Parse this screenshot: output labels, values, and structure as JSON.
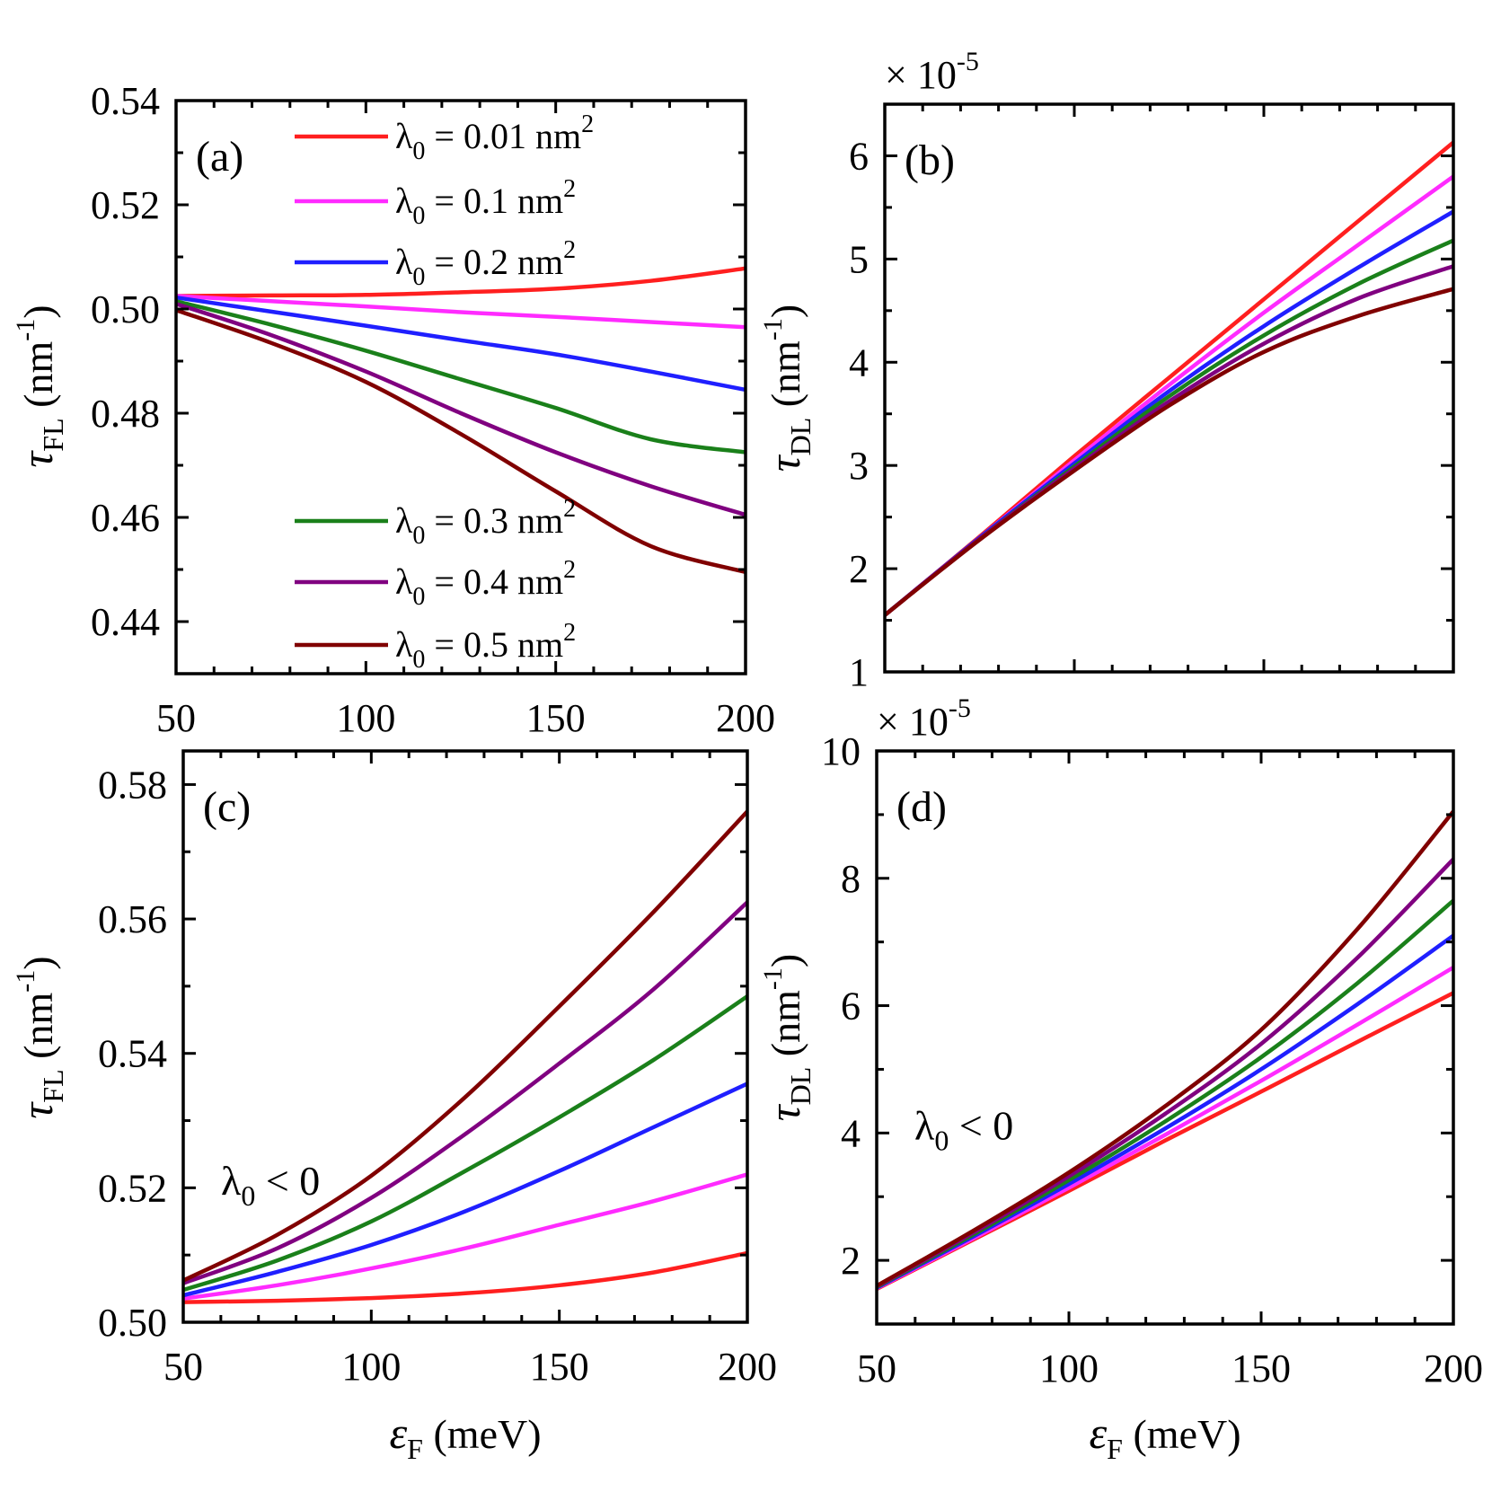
{
  "colors": {
    "0.01": "#ff1f1f",
    "0.1": "#ff2bff",
    "0.2": "#1f1fff",
    "0.3": "#1a801a",
    "0.4": "#800080",
    "0.5": "#800000"
  },
  "axis_labels": {
    "x_sym": "ε",
    "x_sub": "F",
    "x_unit": " (meV)",
    "y_fl_sym": "τ",
    "y_fl_sub": "FL",
    "y_dl_sym": "τ",
    "y_dl_sub": "DL",
    "y_unit_open": " (nm",
    "y_unit_sup": "-1",
    "y_unit_close": ")"
  },
  "chart_data": [
    {
      "panel": "(a)",
      "type": "line",
      "xlim": [
        50,
        200
      ],
      "ylim": [
        0.43,
        0.54
      ],
      "xticks": [
        "50",
        "100",
        "150",
        "200"
      ],
      "yticks": [
        "0.44",
        "0.46",
        "0.48",
        "0.50",
        "0.52",
        "0.54"
      ],
      "x": [
        50,
        75,
        100,
        125,
        150,
        175,
        200
      ],
      "series": [
        {
          "name": "λ0 = 0.01 nm2",
          "values": [
            0.5025,
            0.5026,
            0.5027,
            0.5032,
            0.5039,
            0.5054,
            0.5078
          ]
        },
        {
          "name": "λ0 = 0.1 nm2",
          "values": [
            0.5025,
            0.5015,
            0.5005,
            0.4994,
            0.4985,
            0.4975,
            0.4965
          ]
        },
        {
          "name": "λ0 = 0.2 nm2",
          "values": [
            0.5022,
            0.4995,
            0.4968,
            0.494,
            0.4913,
            0.488,
            0.4845
          ]
        },
        {
          "name": "λ0 = 0.3 nm2",
          "values": [
            0.5015,
            0.497,
            0.492,
            0.4865,
            0.481,
            0.475,
            0.4725
          ]
        },
        {
          "name": "λ0 = 0.4 nm2",
          "values": [
            0.501,
            0.495,
            0.488,
            0.48,
            0.4725,
            0.466,
            0.4605
          ]
        },
        {
          "name": "λ0 = 0.5 nm2",
          "values": [
            0.4998,
            0.4935,
            0.486,
            0.476,
            0.465,
            0.4545,
            0.4495
          ]
        }
      ],
      "legend": {
        "top": [
          "λ0 = 0.01 nm2",
          "λ0 = 0.1 nm2",
          "λ0 = 0.2 nm2"
        ],
        "bottom": [
          "λ0 = 0.3 nm2",
          "λ0 = 0.4 nm2",
          "λ0 = 0.5 nm2"
        ]
      }
    },
    {
      "panel": "(b)",
      "type": "line",
      "multiplier": "× 10",
      "multiplier_exp": "-5",
      "xlim": [
        50,
        200
      ],
      "ylim": [
        1,
        6.5
      ],
      "xticks": [],
      "yticks": [
        "1",
        "2",
        "3",
        "4",
        "5",
        "6"
      ],
      "x": [
        50,
        75,
        100,
        125,
        150,
        175,
        200
      ],
      "series": [
        {
          "name": "λ0 = 0.01 nm2",
          "values": [
            1.55,
            2.31,
            3.09,
            3.85,
            4.61,
            5.37,
            6.13
          ]
        },
        {
          "name": "λ0 = 0.1 nm2",
          "values": [
            1.55,
            2.3,
            3.05,
            3.78,
            4.48,
            5.14,
            5.8
          ]
        },
        {
          "name": "λ0 = 0.2 nm2",
          "values": [
            1.55,
            2.3,
            3.02,
            3.72,
            4.35,
            4.92,
            5.46
          ]
        },
        {
          "name": "λ0 = 0.3 nm2",
          "values": [
            1.55,
            2.29,
            2.99,
            3.67,
            4.26,
            4.76,
            5.18
          ]
        },
        {
          "name": "λ0 = 0.4 nm2",
          "values": [
            1.55,
            2.29,
            2.97,
            3.62,
            4.18,
            4.62,
            4.93
          ]
        },
        {
          "name": "λ0 = 0.5 nm2",
          "values": [
            1.55,
            2.28,
            2.95,
            3.58,
            4.1,
            4.45,
            4.71
          ]
        }
      ]
    },
    {
      "panel": "(c)",
      "type": "line",
      "annotation": "λ0 < 0",
      "xlim": [
        50,
        200
      ],
      "ylim": [
        0.5,
        0.585
      ],
      "xticks": [
        "50",
        "100",
        "150",
        "200"
      ],
      "yticks": [
        "0.50",
        "0.52",
        "0.54",
        "0.56",
        "0.58"
      ],
      "x": [
        50,
        75,
        100,
        125,
        150,
        175,
        200
      ],
      "series": [
        {
          "name": "λ0 = 0.01 nm2",
          "values": [
            0.503,
            0.5032,
            0.5036,
            0.5043,
            0.5055,
            0.5074,
            0.5103
          ]
        },
        {
          "name": "λ0 = 0.1 nm2",
          "values": [
            0.5035,
            0.5055,
            0.508,
            0.511,
            0.5145,
            0.518,
            0.522
          ]
        },
        {
          "name": "λ0 = 0.2 nm2",
          "values": [
            0.504,
            0.5075,
            0.5115,
            0.5165,
            0.5225,
            0.529,
            0.5355
          ]
        },
        {
          "name": "λ0 = 0.3 nm2",
          "values": [
            0.5048,
            0.5092,
            0.515,
            0.5225,
            0.5305,
            0.539,
            0.5485
          ]
        },
        {
          "name": "λ0 = 0.4 nm2",
          "values": [
            0.5058,
            0.511,
            0.5185,
            0.528,
            0.5385,
            0.5495,
            0.5625
          ]
        },
        {
          "name": "λ0 = 0.5 nm2",
          "values": [
            0.5062,
            0.513,
            0.5218,
            0.5335,
            0.547,
            0.561,
            0.576
          ]
        }
      ]
    },
    {
      "panel": "(d)",
      "type": "line",
      "annotation": "λ0 < 0",
      "multiplier": "× 10",
      "multiplier_exp": "-5",
      "xlim": [
        50,
        200
      ],
      "ylim": [
        1,
        10
      ],
      "xticks": [
        "50",
        "100",
        "150",
        "200"
      ],
      "yticks": [
        "2",
        "4",
        "6",
        "8",
        "10"
      ],
      "x": [
        50,
        75,
        100,
        125,
        150,
        175,
        200
      ],
      "series": [
        {
          "name": "λ0 = 0.01 nm2",
          "values": [
            1.55,
            2.32,
            3.09,
            3.88,
            4.65,
            5.43,
            6.2
          ]
        },
        {
          "name": "λ0 = 0.1 nm2",
          "values": [
            1.56,
            2.34,
            3.14,
            3.97,
            4.82,
            5.7,
            6.6
          ]
        },
        {
          "name": "λ0 = 0.2 nm2",
          "values": [
            1.57,
            2.37,
            3.2,
            4.07,
            5.0,
            6.02,
            7.1
          ]
        },
        {
          "name": "λ0 = 0.3 nm2",
          "values": [
            1.58,
            2.4,
            3.26,
            4.18,
            5.19,
            6.35,
            7.65
          ]
        },
        {
          "name": "λ0 = 0.4 nm2",
          "values": [
            1.59,
            2.43,
            3.32,
            4.3,
            5.4,
            6.75,
            8.3
          ]
        },
        {
          "name": "λ0 = 0.5 nm2",
          "values": [
            1.6,
            2.46,
            3.38,
            4.42,
            5.62,
            7.2,
            9.05
          ]
        }
      ]
    }
  ]
}
